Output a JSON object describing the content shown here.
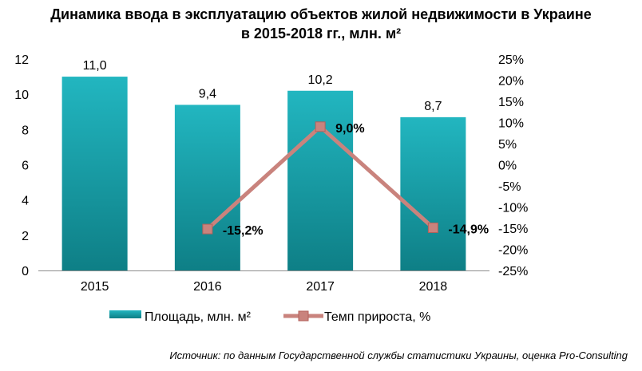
{
  "title": {
    "line1": "Динамика ввода в эксплуатацию объектов жилой недвижимости в Украине",
    "line2": "в 2015-2018 гг., млн. м²"
  },
  "source": "Источник: по данным Государственной службы статистики Украины, оценка Pro-Consulting",
  "chart_data": {
    "type": "bar",
    "categories": [
      "2015",
      "2016",
      "2017",
      "2018"
    ],
    "series": [
      {
        "name": "Площадь, млн. м²",
        "type": "bar",
        "axis": "left",
        "values": [
          11.0,
          9.4,
          10.2,
          8.7
        ],
        "labels": [
          "11,0",
          "9,4",
          "10,2",
          "8,7"
        ],
        "color": "#1aa5b0"
      },
      {
        "name": "Темп прироста, %",
        "type": "line",
        "axis": "right",
        "values": [
          null,
          -15.2,
          9.0,
          -14.9
        ],
        "labels": [
          "",
          "-15,2%",
          "9,0%",
          "-14,9%"
        ],
        "color": "#c9837d"
      }
    ],
    "y_left": {
      "ylim": [
        0,
        12
      ],
      "ticks": [
        0,
        2,
        4,
        6,
        8,
        10,
        12
      ],
      "tick_labels": [
        "0",
        "2",
        "4",
        "6",
        "8",
        "10",
        "12"
      ]
    },
    "y_right": {
      "ylim": [
        -25,
        25
      ],
      "ticks": [
        25,
        20,
        15,
        10,
        5,
        0,
        -5,
        -10,
        -15,
        -20,
        -25
      ],
      "tick_labels": [
        "25%",
        "20%",
        "15%",
        "10%",
        "5%",
        "0%",
        "-5%",
        "-10%",
        "-15%",
        "-20%",
        "-25%"
      ]
    },
    "grid": false,
    "legend": "bottom"
  }
}
